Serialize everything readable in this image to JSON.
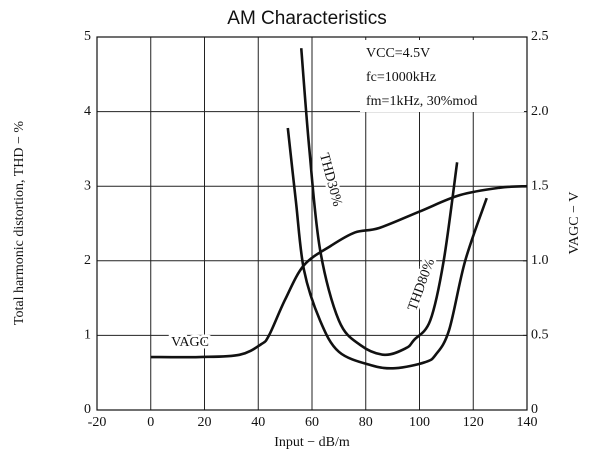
{
  "chart_data": {
    "type": "line",
    "title": "AM Characteristics",
    "x_label": "Input − dB/m",
    "y_label": "Total harmonic distortion, THD − %",
    "y2_label": "VAGC − V",
    "conditions": [
      "VCC=4.5V",
      "fc=1000kHz",
      "fm=1kHz, 30%mod"
    ],
    "grid": true,
    "xlim": [
      -20,
      140
    ],
    "xticks": [
      -20,
      0,
      20,
      40,
      60,
      80,
      100,
      120,
      140
    ],
    "ylim": [
      0,
      5
    ],
    "yticks": [
      0,
      1,
      2,
      3,
      4,
      5
    ],
    "y2lim": [
      0,
      2.5
    ],
    "y2ticks": [
      0,
      0.5,
      {
        "value": 1,
        "label": "1.0"
      },
      1.5,
      {
        "value": 2,
        "label": "2.0"
      },
      2.5
    ],
    "series": [
      {
        "name": "THD30%",
        "color": "#111111",
        "x": [
          56,
          59,
          63,
          70,
          78,
          87,
          95,
          98,
          104,
          109,
          114
        ],
        "values": [
          4.85,
          3.5,
          2.15,
          1.2,
          0.87,
          0.74,
          0.83,
          0.94,
          1.2,
          2.0,
          3.32
        ]
      },
      {
        "name": "THD80%",
        "color": "#111111",
        "x": [
          51,
          54,
          57,
          63,
          70,
          82,
          91,
          102,
          106,
          111,
          117,
          125
        ],
        "values": [
          3.78,
          2.8,
          1.88,
          1.2,
          0.78,
          0.6,
          0.56,
          0.64,
          0.74,
          1.07,
          2.0,
          2.84
        ]
      },
      {
        "name": "VAGC",
        "color": "#111111",
        "axis": "y2",
        "x": [
          0,
          18,
          33,
          41,
          44,
          50,
          57,
          67,
          76,
          85,
          100,
          115,
          130,
          140
        ],
        "values": [
          0.355,
          0.355,
          0.37,
          0.44,
          0.5,
          0.74,
          0.97,
          1.1,
          1.19,
          1.22,
          1.33,
          1.44,
          1.49,
          1.5
        ]
      }
    ]
  }
}
